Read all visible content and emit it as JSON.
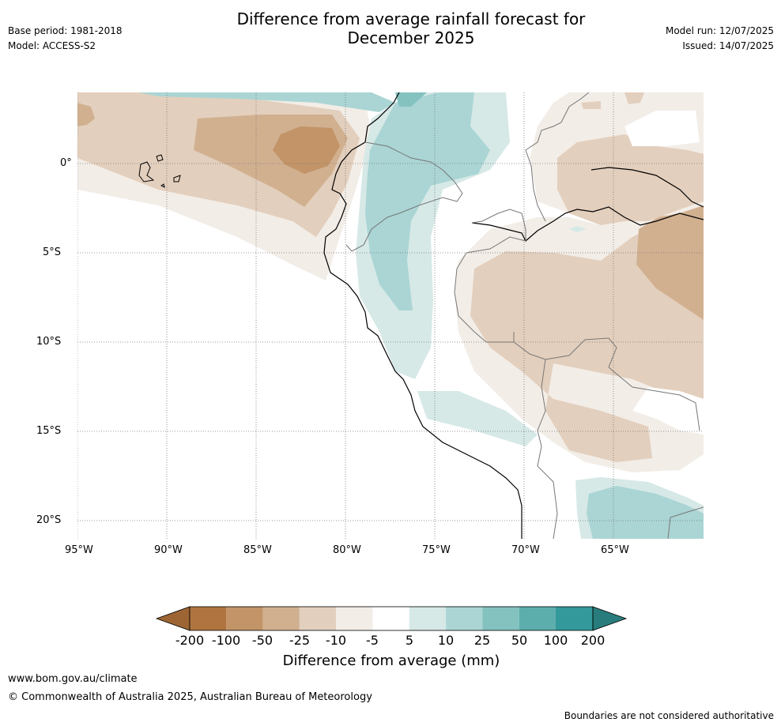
{
  "header": {
    "title_line1": "Difference from average rainfall forecast for",
    "title_line2": "December 2025",
    "base_period": "Base period: 1981-2018",
    "model": "Model: ACCESS-S2",
    "model_run": "Model run: 12/07/2025",
    "issued": "Issued: 14/07/2025"
  },
  "map": {
    "lat_labels": [
      "0°",
      "5°S",
      "10°S",
      "15°S",
      "20°S"
    ],
    "lon_labels": [
      "95°W",
      "90°W",
      "85°W",
      "80°W",
      "75°W",
      "70°W",
      "65°W"
    ]
  },
  "colorbar": {
    "title": "Difference from average (mm)",
    "tick_labels": [
      "-200",
      "-100",
      "-50",
      "-25",
      "-10",
      "-5",
      "5",
      "10",
      "25",
      "50",
      "100",
      "200"
    ],
    "colors": [
      "#9c6533",
      "#af7440",
      "#c29467",
      "#d1b090",
      "#e3cfbd",
      "#f2ede7",
      "#ffffff",
      "#d6e9e7",
      "#aad5d4",
      "#84c2c0",
      "#5caeac",
      "#33999a",
      "#287d7c"
    ]
  },
  "footer": {
    "url": "www.bom.gov.au/climate",
    "copyright": "© Commonwealth of Australia 2025, Australian Bureau of Meteorology",
    "disclaimer": "Boundaries are not considered authoritative"
  }
}
